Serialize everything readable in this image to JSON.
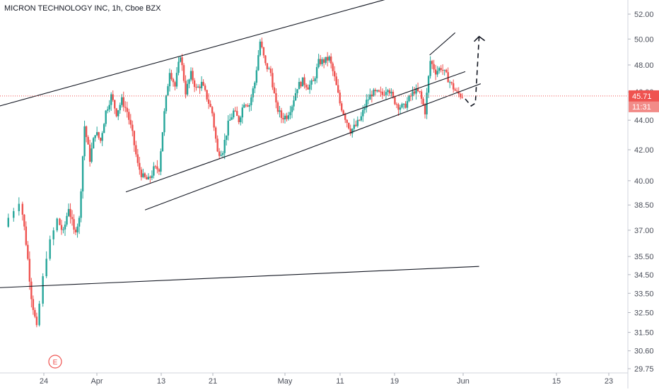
{
  "chart_data": {
    "type": "candlestick",
    "title": "MICRON TECHNOLOGY INC, 1h, Cboe BZX",
    "x_labels": [
      "24",
      "Apr",
      "13",
      "21",
      "May",
      "11",
      "19",
      "Jun",
      "15",
      "23"
    ],
    "y_ticks": [
      "52.00",
      "50.00",
      "48.00",
      "46.00",
      "44.00",
      "42.00",
      "40.00",
      "38.50",
      "37.00",
      "35.50",
      "34.50",
      "33.50",
      "32.50",
      "31.50",
      "30.60",
      "29.75"
    ],
    "y_range": [
      29.75,
      53.0
    ],
    "y_scale": "log",
    "last_price": {
      "value": "45.71",
      "countdown": "11:31"
    },
    "event_marker": "E",
    "colors": {
      "up": "#26a69a",
      "down": "#ef5350",
      "price_line": "#ef5350",
      "lines": "#131722"
    },
    "grid": false,
    "candle_path_points": [
      [
        0.0,
        37.2
      ],
      [
        3.0,
        38.8
      ],
      [
        4.0,
        36.3
      ],
      [
        5.0,
        33.4
      ],
      [
        6.0,
        31.6
      ],
      [
        8.0,
        35.6
      ],
      [
        10.0,
        37.6
      ],
      [
        11.0,
        36.8
      ],
      [
        12.0,
        38.4
      ],
      [
        13.0,
        36.9
      ],
      [
        14.0,
        37.6
      ],
      [
        15.0,
        43.6
      ],
      [
        16.0,
        41.4
      ],
      [
        17.0,
        43.2
      ],
      [
        18.0,
        42.6
      ],
      [
        19.0,
        44.6
      ],
      [
        20.0,
        45.7
      ],
      [
        21.0,
        44.5
      ],
      [
        22.0,
        45.4
      ],
      [
        23.0,
        44.6
      ],
      [
        24.0,
        43.0
      ],
      [
        25.0,
        41.0
      ],
      [
        26.0,
        40.2
      ],
      [
        27.0,
        40.0
      ],
      [
        28.0,
        40.7
      ],
      [
        29.0,
        40.8
      ],
      [
        30.0,
        44.5
      ],
      [
        31.0,
        47.6
      ],
      [
        32.0,
        46.4
      ],
      [
        33.0,
        48.8
      ],
      [
        34.0,
        46.0
      ],
      [
        35.0,
        47.3
      ],
      [
        36.0,
        46.2
      ],
      [
        37.0,
        46.6
      ],
      [
        38.0,
        45.6
      ],
      [
        39.0,
        44.5
      ],
      [
        40.0,
        41.8
      ],
      [
        41.0,
        42.0
      ],
      [
        42.0,
        43.7
      ],
      [
        43.0,
        44.6
      ],
      [
        44.0,
        44.0
      ],
      [
        45.0,
        45.3
      ],
      [
        46.0,
        45.1
      ],
      [
        47.0,
        46.7
      ],
      [
        48.0,
        49.8
      ],
      [
        49.0,
        48.0
      ],
      [
        50.0,
        47.4
      ],
      [
        51.0,
        45.0
      ],
      [
        52.0,
        44.2
      ],
      [
        53.0,
        44.3
      ],
      [
        54.0,
        45.1
      ],
      [
        55.0,
        46.4
      ],
      [
        56.0,
        46.8
      ],
      [
        57.0,
        46.4
      ],
      [
        58.0,
        46.7
      ],
      [
        59.0,
        48.2
      ],
      [
        60.0,
        48.3
      ],
      [
        61.0,
        48.5
      ],
      [
        62.0,
        47.0
      ],
      [
        63.0,
        45.2
      ],
      [
        64.0,
        44.2
      ],
      [
        65.0,
        43.3
      ],
      [
        66.0,
        43.6
      ],
      [
        67.0,
        44.2
      ],
      [
        68.0,
        45.3
      ],
      [
        69.0,
        45.9
      ],
      [
        70.0,
        45.9
      ],
      [
        71.0,
        45.8
      ],
      [
        72.0,
        46.4
      ],
      [
        73.0,
        45.5
      ],
      [
        74.0,
        45.0
      ],
      [
        75.0,
        44.9
      ],
      [
        76.0,
        45.5
      ],
      [
        77.0,
        46.1
      ],
      [
        78.0,
        45.9
      ],
      [
        79.0,
        44.6
      ],
      [
        80.0,
        48.3
      ],
      [
        81.0,
        47.5
      ],
      [
        82.0,
        47.8
      ],
      [
        83.0,
        47.2
      ],
      [
        84.0,
        46.5
      ],
      [
        85.0,
        45.9
      ],
      [
        86.0,
        45.71
      ]
    ]
  },
  "trendlines": [
    {
      "role": "upper-channel",
      "from": [
        -1.1,
        45.0
      ],
      "to": [
        72.9,
        53.4
      ]
    },
    {
      "role": "middle-channel",
      "from": [
        22.6,
        39.3
      ],
      "to": [
        86.4,
        47.5
      ]
    },
    {
      "role": "lower-channel",
      "from": [
        26.2,
        38.2
      ],
      "to": [
        89.3,
        46.6
      ]
    },
    {
      "role": "rising-wedge-top",
      "from": [
        79.7,
        48.75
      ],
      "to": [
        84.5,
        50.5
      ]
    },
    {
      "role": "long-support",
      "from": [
        -1.1,
        33.8
      ],
      "to": [
        89.0,
        34.95
      ]
    }
  ],
  "projection": {
    "style": "dashed",
    "points": [
      [
        86.4,
        45.5
      ],
      [
        87.5,
        45.0
      ],
      [
        88.3,
        45.2
      ],
      [
        89.0,
        50.2
      ]
    ]
  }
}
